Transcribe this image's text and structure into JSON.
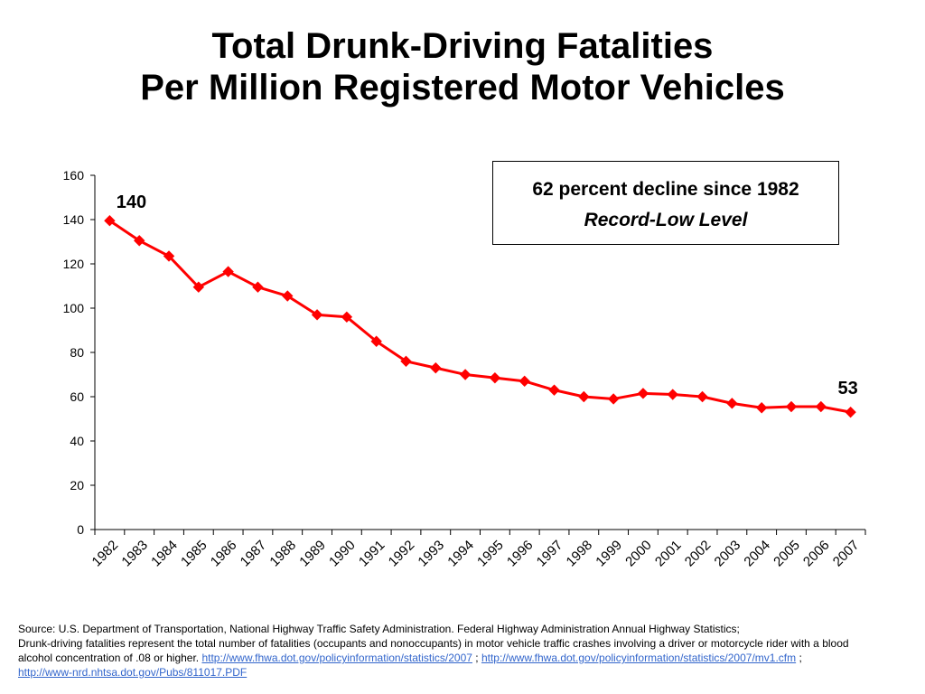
{
  "title": {
    "line1": "Total Drunk-Driving Fatalities",
    "line2": "Per Million Registered Motor Vehicles"
  },
  "callout": {
    "line1": "62 percent decline since 1982",
    "line2": "Record-Low Level"
  },
  "chart_data": {
    "type": "line",
    "categories": [
      "1982",
      "1983",
      "1984",
      "1985",
      "1986",
      "1987",
      "1988",
      "1989",
      "1990",
      "1991",
      "1992",
      "1993",
      "1994",
      "1995",
      "1996",
      "1997",
      "1998",
      "1999",
      "2000",
      "2001",
      "2002",
      "2003",
      "2004",
      "2005",
      "2006",
      "2007"
    ],
    "series": [
      {
        "values": [
          139.5,
          130.5,
          123.5,
          109.5,
          116.5,
          109.5,
          105.5,
          97,
          96,
          85,
          76,
          73,
          70,
          68.5,
          67,
          63,
          60,
          59,
          61.5,
          61,
          60,
          57,
          55,
          55.5,
          55.5,
          53
        ],
        "color": "#ff0000"
      }
    ],
    "data_labels": [
      {
        "index": 0,
        "text": "140"
      },
      {
        "index": 25,
        "text": "53"
      }
    ],
    "y_ticks": [
      "0",
      "20",
      "40",
      "60",
      "80",
      "100",
      "120",
      "140",
      "160"
    ],
    "ylim": [
      0,
      160
    ],
    "grid": false,
    "legend": "none"
  },
  "source": {
    "line1": "Source: U.S. Department of Transportation, National Highway Traffic Safety Administration.  Federal Highway Administration Annual Highway Statistics;",
    "line2": "Drunk-driving fatalities represent the total number of fatalities (occupants and nonoccupants) in motor vehicle traffic crashes involving a driver or motorcycle rider with a blood",
    "line3_text": "alcohol concentration of .08 or higher. ",
    "link1": "http://www.fhwa.dot.gov/policyinformation/statistics/2007",
    "sep1": " ; ",
    "link2": "http://www.fhwa.dot.gov/policyinformation/statistics/2007/mv1.cfm",
    "sep2": " ;",
    "link3": "http://www-nrd.nhtsa.dot.gov/Pubs/811017.PDF"
  }
}
